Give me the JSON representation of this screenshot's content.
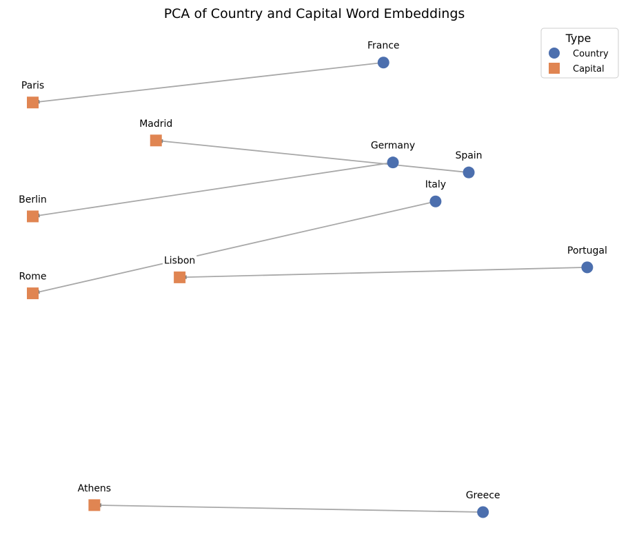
{
  "chart_data": {
    "type": "scatter",
    "title": "PCA of Country and Capital Word Embeddings",
    "xlabel": "",
    "ylabel": "",
    "xlim": [
      -3.2,
      3.2
    ],
    "ylim": [
      -2.45,
      2.6
    ],
    "grid": false,
    "legend": {
      "title": "Type",
      "placement": "top-right",
      "entries": [
        "Country",
        "Capital"
      ]
    },
    "colors": {
      "country": "#4c6fae",
      "capital": "#e08552",
      "connector": "#a8a8a8",
      "arrowhead": "#7f7f7f"
    },
    "series": [
      {
        "name": "Country",
        "marker": "circle",
        "points": [
          {
            "label": "France",
            "x": 0.7,
            "y": 2.25
          },
          {
            "label": "Germany",
            "x": 0.8,
            "y": 1.25
          },
          {
            "label": "Spain",
            "x": 1.6,
            "y": 1.15
          },
          {
            "label": "Italy",
            "x": 1.25,
            "y": 0.86
          },
          {
            "label": "Portugal",
            "x": 2.85,
            "y": 0.2
          },
          {
            "label": "Greece",
            "x": 1.75,
            "y": -2.25
          }
        ]
      },
      {
        "name": "Capital",
        "marker": "square",
        "points": [
          {
            "label": "Paris",
            "x": -3.0,
            "y": 1.85
          },
          {
            "label": "Madrid",
            "x": -1.7,
            "y": 1.47
          },
          {
            "label": "Berlin",
            "x": -3.0,
            "y": 0.71
          },
          {
            "label": "Lisbon",
            "x": -1.45,
            "y": 0.1
          },
          {
            "label": "Rome",
            "x": -3.0,
            "y": -0.06
          },
          {
            "label": "Athens",
            "x": -2.35,
            "y": -2.18
          }
        ]
      }
    ],
    "connections": [
      {
        "country": "France",
        "capital": "Paris"
      },
      {
        "country": "Germany",
        "capital": "Berlin"
      },
      {
        "country": "Spain",
        "capital": "Madrid"
      },
      {
        "country": "Italy",
        "capital": "Rome"
      },
      {
        "country": "Portugal",
        "capital": "Lisbon"
      },
      {
        "country": "Greece",
        "capital": "Athens"
      }
    ]
  }
}
